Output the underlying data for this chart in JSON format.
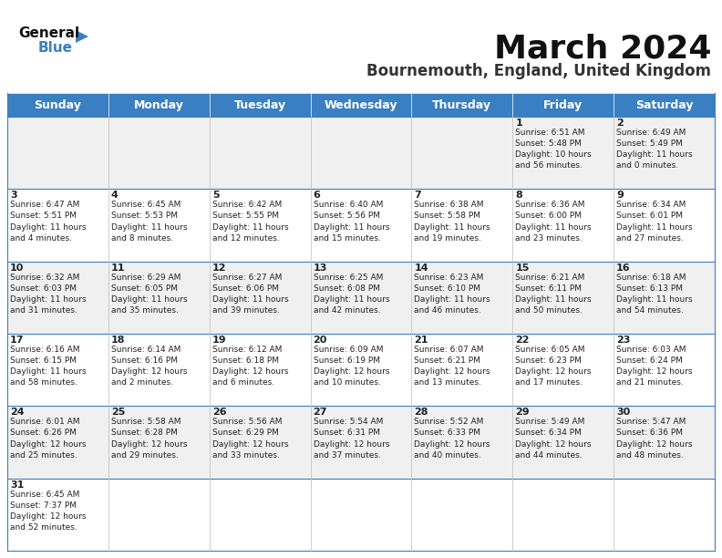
{
  "title": "March 2024",
  "subtitle": "Bournemouth, England, United Kingdom",
  "header_bg": "#3A7FC1",
  "header_text_color": "#FFFFFF",
  "day_names": [
    "Sunday",
    "Monday",
    "Tuesday",
    "Wednesday",
    "Thursday",
    "Friday",
    "Saturday"
  ],
  "row_bg_even": "#F0F0F0",
  "row_bg_odd": "#FFFFFF",
  "border_color": "#3A7FC1",
  "thin_border_color": "#BBBBBB",
  "day_num_color": "#222222",
  "cell_text_color": "#222222",
  "title_fontsize": 26,
  "subtitle_fontsize": 12,
  "header_fontsize": 9,
  "day_num_fontsize": 8,
  "cell_text_fontsize": 6.5,
  "calendar": [
    [
      {
        "day": null,
        "text": ""
      },
      {
        "day": null,
        "text": ""
      },
      {
        "day": null,
        "text": ""
      },
      {
        "day": null,
        "text": ""
      },
      {
        "day": null,
        "text": ""
      },
      {
        "day": 1,
        "text": "Sunrise: 6:51 AM\nSunset: 5:48 PM\nDaylight: 10 hours\nand 56 minutes."
      },
      {
        "day": 2,
        "text": "Sunrise: 6:49 AM\nSunset: 5:49 PM\nDaylight: 11 hours\nand 0 minutes."
      }
    ],
    [
      {
        "day": 3,
        "text": "Sunrise: 6:47 AM\nSunset: 5:51 PM\nDaylight: 11 hours\nand 4 minutes."
      },
      {
        "day": 4,
        "text": "Sunrise: 6:45 AM\nSunset: 5:53 PM\nDaylight: 11 hours\nand 8 minutes."
      },
      {
        "day": 5,
        "text": "Sunrise: 6:42 AM\nSunset: 5:55 PM\nDaylight: 11 hours\nand 12 minutes."
      },
      {
        "day": 6,
        "text": "Sunrise: 6:40 AM\nSunset: 5:56 PM\nDaylight: 11 hours\nand 15 minutes."
      },
      {
        "day": 7,
        "text": "Sunrise: 6:38 AM\nSunset: 5:58 PM\nDaylight: 11 hours\nand 19 minutes."
      },
      {
        "day": 8,
        "text": "Sunrise: 6:36 AM\nSunset: 6:00 PM\nDaylight: 11 hours\nand 23 minutes."
      },
      {
        "day": 9,
        "text": "Sunrise: 6:34 AM\nSunset: 6:01 PM\nDaylight: 11 hours\nand 27 minutes."
      }
    ],
    [
      {
        "day": 10,
        "text": "Sunrise: 6:32 AM\nSunset: 6:03 PM\nDaylight: 11 hours\nand 31 minutes."
      },
      {
        "day": 11,
        "text": "Sunrise: 6:29 AM\nSunset: 6:05 PM\nDaylight: 11 hours\nand 35 minutes."
      },
      {
        "day": 12,
        "text": "Sunrise: 6:27 AM\nSunset: 6:06 PM\nDaylight: 11 hours\nand 39 minutes."
      },
      {
        "day": 13,
        "text": "Sunrise: 6:25 AM\nSunset: 6:08 PM\nDaylight: 11 hours\nand 42 minutes."
      },
      {
        "day": 14,
        "text": "Sunrise: 6:23 AM\nSunset: 6:10 PM\nDaylight: 11 hours\nand 46 minutes."
      },
      {
        "day": 15,
        "text": "Sunrise: 6:21 AM\nSunset: 6:11 PM\nDaylight: 11 hours\nand 50 minutes."
      },
      {
        "day": 16,
        "text": "Sunrise: 6:18 AM\nSunset: 6:13 PM\nDaylight: 11 hours\nand 54 minutes."
      }
    ],
    [
      {
        "day": 17,
        "text": "Sunrise: 6:16 AM\nSunset: 6:15 PM\nDaylight: 11 hours\nand 58 minutes."
      },
      {
        "day": 18,
        "text": "Sunrise: 6:14 AM\nSunset: 6:16 PM\nDaylight: 12 hours\nand 2 minutes."
      },
      {
        "day": 19,
        "text": "Sunrise: 6:12 AM\nSunset: 6:18 PM\nDaylight: 12 hours\nand 6 minutes."
      },
      {
        "day": 20,
        "text": "Sunrise: 6:09 AM\nSunset: 6:19 PM\nDaylight: 12 hours\nand 10 minutes."
      },
      {
        "day": 21,
        "text": "Sunrise: 6:07 AM\nSunset: 6:21 PM\nDaylight: 12 hours\nand 13 minutes."
      },
      {
        "day": 22,
        "text": "Sunrise: 6:05 AM\nSunset: 6:23 PM\nDaylight: 12 hours\nand 17 minutes."
      },
      {
        "day": 23,
        "text": "Sunrise: 6:03 AM\nSunset: 6:24 PM\nDaylight: 12 hours\nand 21 minutes."
      }
    ],
    [
      {
        "day": 24,
        "text": "Sunrise: 6:01 AM\nSunset: 6:26 PM\nDaylight: 12 hours\nand 25 minutes."
      },
      {
        "day": 25,
        "text": "Sunrise: 5:58 AM\nSunset: 6:28 PM\nDaylight: 12 hours\nand 29 minutes."
      },
      {
        "day": 26,
        "text": "Sunrise: 5:56 AM\nSunset: 6:29 PM\nDaylight: 12 hours\nand 33 minutes."
      },
      {
        "day": 27,
        "text": "Sunrise: 5:54 AM\nSunset: 6:31 PM\nDaylight: 12 hours\nand 37 minutes."
      },
      {
        "day": 28,
        "text": "Sunrise: 5:52 AM\nSunset: 6:33 PM\nDaylight: 12 hours\nand 40 minutes."
      },
      {
        "day": 29,
        "text": "Sunrise: 5:49 AM\nSunset: 6:34 PM\nDaylight: 12 hours\nand 44 minutes."
      },
      {
        "day": 30,
        "text": "Sunrise: 5:47 AM\nSunset: 6:36 PM\nDaylight: 12 hours\nand 48 minutes."
      }
    ],
    [
      {
        "day": 31,
        "text": "Sunrise: 6:45 AM\nSunset: 7:37 PM\nDaylight: 12 hours\nand 52 minutes."
      },
      {
        "day": null,
        "text": ""
      },
      {
        "day": null,
        "text": ""
      },
      {
        "day": null,
        "text": ""
      },
      {
        "day": null,
        "text": ""
      },
      {
        "day": null,
        "text": ""
      },
      {
        "day": null,
        "text": ""
      }
    ]
  ]
}
